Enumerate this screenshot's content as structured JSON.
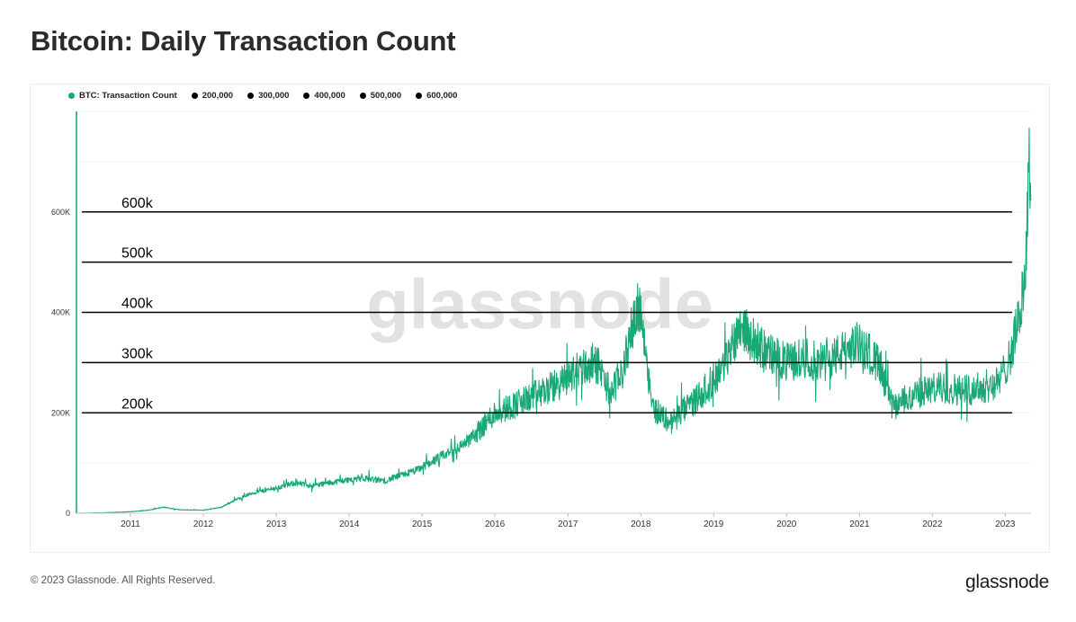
{
  "title": "Bitcoin: Daily Transaction Count",
  "footer": "© 2023 Glassnode. All Rights Reserved.",
  "brand": "glassnode",
  "watermark": "glassnode",
  "colors": {
    "series": "#1aa974",
    "refline": "#000000",
    "grid": "#f0f0f0",
    "watermark": "#d9d9d9"
  },
  "legend": [
    {
      "label": "BTC: Transaction Count",
      "color": "#1aa974"
    },
    {
      "label": "200,000",
      "color": "#000000"
    },
    {
      "label": "300,000",
      "color": "#000000"
    },
    {
      "label": "400,000",
      "color": "#000000"
    },
    {
      "label": "500,000",
      "color": "#000000"
    },
    {
      "label": "600,000",
      "color": "#000000"
    }
  ],
  "chart_data": {
    "type": "line",
    "title": "Bitcoin: Daily Transaction Count",
    "xlabel": "",
    "ylabel": "",
    "x_ticks": [
      "2011",
      "2012",
      "2013",
      "2014",
      "2015",
      "2016",
      "2017",
      "2018",
      "2019",
      "2020",
      "2021",
      "2022",
      "2023"
    ],
    "y_ticks": [
      {
        "value": 0,
        "label": "0"
      },
      {
        "value": 200000,
        "label": "200K"
      },
      {
        "value": 400000,
        "label": "400K"
      },
      {
        "value": 600000,
        "label": "600K"
      }
    ],
    "xlim": [
      "2010-04-01",
      "2023-05-10"
    ],
    "ylim": [
      0,
      800000
    ],
    "grid": true,
    "legend_position": "top-left",
    "reference_lines": [
      {
        "name": "200,000",
        "value": 200000,
        "annotation": "200k"
      },
      {
        "name": "300,000",
        "value": 300000,
        "annotation": "300k"
      },
      {
        "name": "400,000",
        "value": 400000,
        "annotation": "400k"
      },
      {
        "name": "500,000",
        "value": 500000,
        "annotation": "500k"
      },
      {
        "name": "600,000",
        "value": 600000,
        "annotation": "600k"
      }
    ],
    "series": [
      {
        "name": "BTC: Transaction Count",
        "points": [
          [
            "2010-04-01",
            150
          ],
          [
            "2010-07-01",
            500
          ],
          [
            "2010-10-01",
            1500
          ],
          [
            "2011-01-01",
            3000
          ],
          [
            "2011-04-01",
            6000
          ],
          [
            "2011-06-15",
            12000
          ],
          [
            "2011-09-01",
            7000
          ],
          [
            "2012-01-01",
            6000
          ],
          [
            "2012-04-01",
            12000
          ],
          [
            "2012-06-01",
            25000
          ],
          [
            "2012-09-01",
            40000
          ],
          [
            "2013-01-01",
            50000
          ],
          [
            "2013-04-01",
            60000
          ],
          [
            "2013-07-01",
            55000
          ],
          [
            "2013-12-01",
            65000
          ],
          [
            "2014-03-01",
            70000
          ],
          [
            "2014-07-01",
            65000
          ],
          [
            "2014-12-01",
            85000
          ],
          [
            "2015-03-01",
            105000
          ],
          [
            "2015-07-01",
            130000
          ],
          [
            "2015-10-01",
            160000
          ],
          [
            "2016-01-01",
            200000
          ],
          [
            "2016-06-01",
            225000
          ],
          [
            "2016-12-01",
            260000
          ],
          [
            "2017-03-01",
            290000
          ],
          [
            "2017-06-01",
            295000
          ],
          [
            "2017-08-01",
            240000
          ],
          [
            "2017-10-01",
            280000
          ],
          [
            "2017-12-15",
            420000
          ],
          [
            "2018-01-15",
            360000
          ],
          [
            "2018-03-01",
            210000
          ],
          [
            "2018-06-01",
            180000
          ],
          [
            "2018-09-01",
            215000
          ],
          [
            "2018-12-01",
            250000
          ],
          [
            "2019-03-01",
            300000
          ],
          [
            "2019-05-15",
            380000
          ],
          [
            "2019-07-01",
            350000
          ],
          [
            "2019-10-01",
            320000
          ],
          [
            "2020-01-01",
            300000
          ],
          [
            "2020-04-01",
            310000
          ],
          [
            "2020-07-01",
            300000
          ],
          [
            "2020-10-01",
            320000
          ],
          [
            "2021-01-01",
            340000
          ],
          [
            "2021-04-01",
            300000
          ],
          [
            "2021-06-15",
            210000
          ],
          [
            "2021-09-01",
            230000
          ],
          [
            "2021-12-01",
            245000
          ],
          [
            "2022-03-01",
            250000
          ],
          [
            "2022-06-01",
            245000
          ],
          [
            "2022-09-01",
            250000
          ],
          [
            "2022-12-01",
            260000
          ],
          [
            "2023-02-01",
            320000
          ],
          [
            "2023-03-15",
            400000
          ],
          [
            "2023-04-10",
            470000
          ],
          [
            "2023-05-01",
            682000
          ]
        ]
      }
    ]
  }
}
